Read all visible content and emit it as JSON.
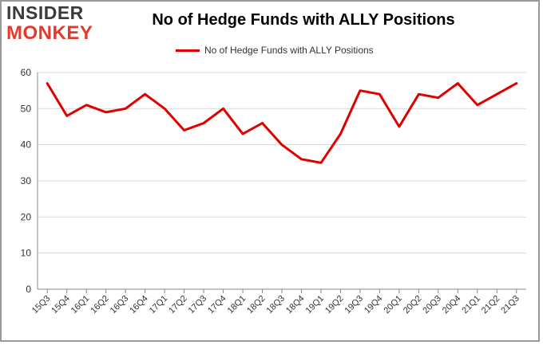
{
  "logo": {
    "line1": "INSIDER",
    "line2": "MONKEY"
  },
  "colors": {
    "line": "#e00000",
    "grid": "#d9d9d9",
    "axis": "#888888",
    "logo_red": "#e23a2c"
  },
  "chart_data": {
    "type": "line",
    "title": "No of Hedge Funds with ALLY Positions",
    "xlabel": "",
    "ylabel": "",
    "ylim": [
      0,
      60
    ],
    "yticks": [
      0,
      10,
      20,
      30,
      40,
      50,
      60
    ],
    "grid": "horizontal",
    "legend_position": "top-center",
    "categories": [
      "15Q3",
      "15Q4",
      "16Q1",
      "16Q2",
      "16Q3",
      "16Q4",
      "17Q1",
      "17Q2",
      "17Q3",
      "17Q4",
      "18Q1",
      "18Q2",
      "18Q3",
      "18Q4",
      "19Q1",
      "19Q2",
      "19Q3",
      "19Q4",
      "20Q1",
      "20Q2",
      "20Q3",
      "20Q4",
      "21Q1",
      "21Q2",
      "21Q3"
    ],
    "series": [
      {
        "name": "No of Hedge Funds with ALLY Positions",
        "values": [
          57,
          48,
          51,
          49,
          50,
          54,
          50,
          44,
          46,
          50,
          43,
          46,
          40,
          36,
          35,
          43,
          55,
          54,
          45,
          54,
          53,
          57,
          51,
          54,
          57
        ]
      }
    ]
  }
}
